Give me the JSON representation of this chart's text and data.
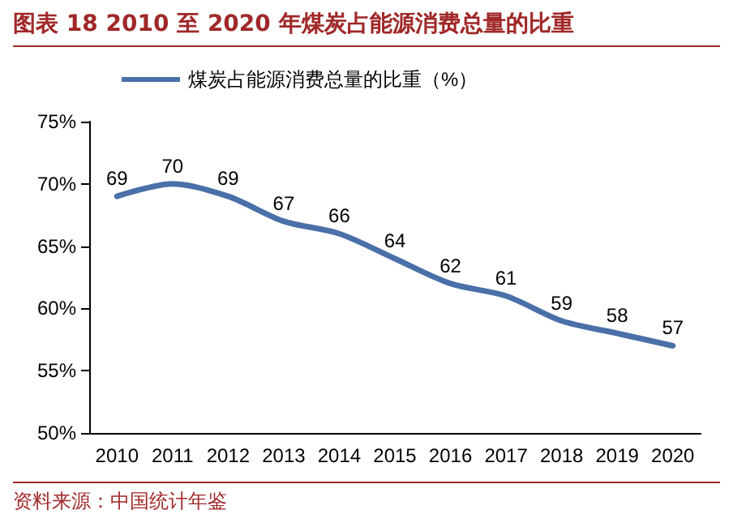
{
  "chart_data": {
    "type": "line",
    "title": "图表 18 2010 至 2020 年煤炭占能源消费总量的比重",
    "categories": [
      "2010",
      "2011",
      "2012",
      "2013",
      "2014",
      "2015",
      "2016",
      "2017",
      "2018",
      "2019",
      "2020"
    ],
    "series": [
      {
        "name": "煤炭占能源消费总量的比重（%）",
        "color": "#4a70a8",
        "values": [
          69,
          70,
          69,
          67,
          66,
          64,
          62,
          61,
          59,
          58,
          57
        ]
      }
    ],
    "ylim": [
      50,
      75
    ],
    "yticks": [
      {
        "value": 50,
        "label": "50%"
      },
      {
        "value": 55,
        "label": "55%"
      },
      {
        "value": 60,
        "label": "60%"
      },
      {
        "value": 65,
        "label": "65%"
      },
      {
        "value": 70,
        "label": "70%"
      },
      {
        "value": 75,
        "label": "75%"
      }
    ],
    "data_labels": true,
    "grid": false,
    "legend": "top left",
    "marker": "none",
    "line_style": "solid",
    "annotations": [
      "资料来源：中国统计年鉴"
    ]
  }
}
